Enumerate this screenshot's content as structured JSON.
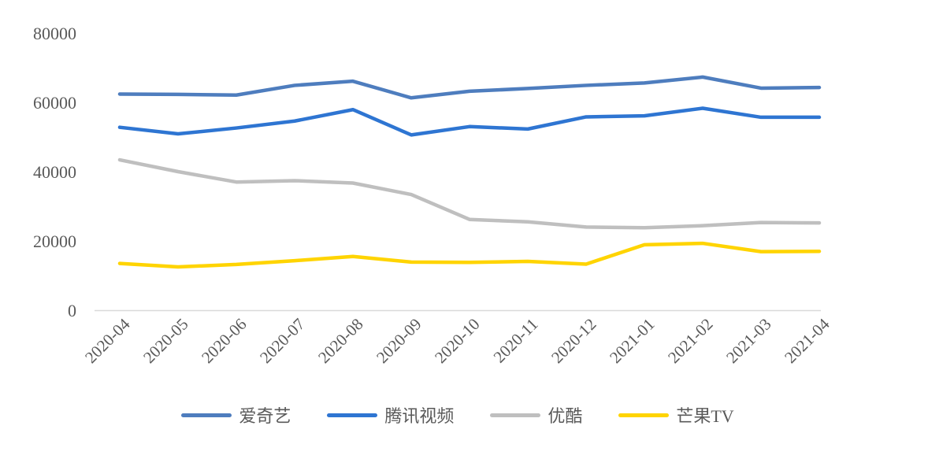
{
  "chart_data": {
    "type": "line",
    "title": "",
    "x": [
      "2020-04",
      "2020-05",
      "2020-06",
      "2020-07",
      "2020-08",
      "2020-09",
      "2020-10",
      "2020-11",
      "2020-12",
      "2021-01",
      "2021-02",
      "2021-03",
      "2021-04"
    ],
    "series": [
      {
        "name": "爱奇艺",
        "color": "#4E7DBE",
        "values": [
          62400,
          62300,
          62100,
          64900,
          66100,
          61300,
          63200,
          64000,
          64900,
          65600,
          67300,
          64100,
          64300
        ]
      },
      {
        "name": "腾讯视频",
        "color": "#2E75D2",
        "values": [
          52800,
          50900,
          52600,
          54600,
          57900,
          50600,
          53000,
          52300,
          55800,
          56100,
          58300,
          55700,
          55700
        ]
      },
      {
        "name": "优酷",
        "color": "#BFBFBF",
        "values": [
          43400,
          40000,
          37000,
          37400,
          36700,
          33400,
          26200,
          25500,
          24000,
          23800,
          24400,
          25300,
          25200
        ]
      },
      {
        "name": "芒果TV",
        "color": "#FFD400",
        "values": [
          13500,
          12500,
          13200,
          14300,
          15500,
          13900,
          13800,
          14100,
          13300,
          18900,
          19300,
          16900,
          17000
        ]
      }
    ],
    "y_ticks": [
      0,
      20000,
      40000,
      60000,
      80000
    ],
    "ylim": [
      0,
      80000
    ],
    "grid": false,
    "legend_position": "bottom",
    "axis_color": "#D9D9D9",
    "label_color": "#595959"
  }
}
